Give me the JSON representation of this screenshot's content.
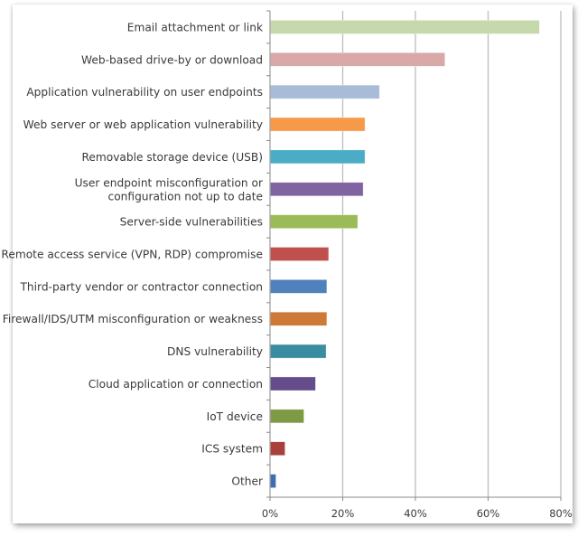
{
  "chart_data": {
    "type": "bar",
    "orientation": "horizontal",
    "title": "",
    "xlabel": "",
    "ylabel": "",
    "xlim": [
      0,
      80
    ],
    "grid": true,
    "x_ticks": [
      "0%",
      "20%",
      "40%",
      "60%",
      "80%"
    ],
    "x_tick_values": [
      0,
      20,
      40,
      60,
      80
    ],
    "categories": [
      [
        "Email attachment or link"
      ],
      [
        "Web-based drive-by or download"
      ],
      [
        "Application vulnerability on user endpoints"
      ],
      [
        "Web server or web application vulnerability"
      ],
      [
        "Removable storage device (USB)"
      ],
      [
        "User endpoint misconfiguration or",
        "configuration not up to date"
      ],
      [
        "Server-side vulnerabilities"
      ],
      [
        "Remote access service (VPN, RDP) compromise"
      ],
      [
        "Third-party vendor or contractor connection"
      ],
      [
        "Firewall/IDS/UTM misconfiguration or weakness"
      ],
      [
        "DNS vulnerability"
      ],
      [
        "Cloud application or connection"
      ],
      [
        "IoT device"
      ],
      [
        "ICS system"
      ],
      [
        "Other"
      ]
    ],
    "values": [
      74,
      48,
      30,
      26,
      26,
      25.5,
      24,
      16,
      15.5,
      15.5,
      15.3,
      12.4,
      9.2,
      4,
      1.5
    ],
    "colors": [
      "#c6d9ac",
      "#d9a9a8",
      "#a8bcd8",
      "#f69a4a",
      "#4bacc6",
      "#8064a2",
      "#9bbb59",
      "#c0504d",
      "#4f81bd",
      "#cc7a35",
      "#3a8ca0",
      "#654d8c",
      "#7f9a45",
      "#a8403c",
      "#3d6fb0"
    ]
  }
}
